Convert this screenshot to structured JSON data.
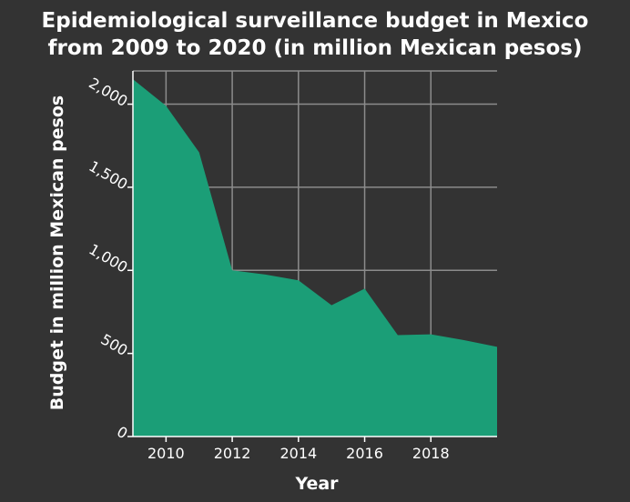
{
  "chart_data": {
    "type": "area",
    "title": "Epidemiological surveillance budget in Mexico from 2009 to 2020 (in million Mexican pesos)",
    "title_lines": [
      "Epidemiological surveillance budget in Mexico",
      "from 2009 to 2020 (in million Mexican pesos)"
    ],
    "xlabel": "Year",
    "ylabel": "Budget in million Mexican pesos",
    "x": [
      2009,
      2010,
      2011,
      2012,
      2013,
      2014,
      2015,
      2016,
      2017,
      2018,
      2019,
      2020
    ],
    "series": [
      {
        "values": [
          2150,
          1990,
          1710,
          1000,
          975,
          940,
          790,
          890,
          610,
          615,
          580,
          540
        ]
      }
    ],
    "xlim": [
      2009,
      2020
    ],
    "ylim": [
      0,
      2200
    ],
    "xticks": [
      2010,
      2012,
      2014,
      2016,
      2018
    ],
    "xtick_labels": [
      "2010",
      "2012",
      "2014",
      "2016",
      "2018"
    ],
    "yticks": [
      0,
      500,
      1000,
      1500,
      2000
    ],
    "ytick_labels": [
      "0",
      "500",
      "1,000",
      "1,500",
      "2,000"
    ],
    "grid": true,
    "colors": {
      "fill": "#1b9e77",
      "background": "#333333",
      "grid": "#8c8c8c",
      "axis": "#ffffff",
      "text": "#ffffff"
    }
  }
}
